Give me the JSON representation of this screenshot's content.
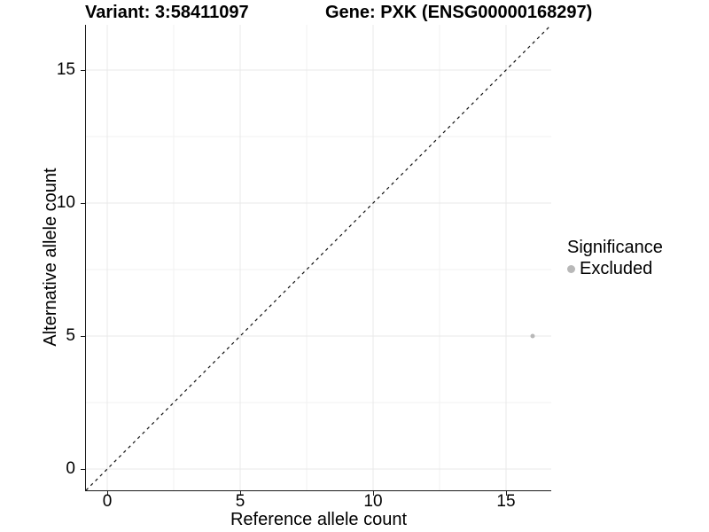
{
  "chart_data": {
    "type": "scatter",
    "titles": {
      "left": "Variant: 3:58411097",
      "right": "Gene: PXK (ENSG00000168297)"
    },
    "xlabel": "Reference allele count",
    "ylabel": "Alternative allele count",
    "xlim": [
      -0.8,
      16.7
    ],
    "ylim": [
      -0.8,
      16.7
    ],
    "x_ticks": [
      0,
      5,
      10,
      15
    ],
    "y_ticks": [
      0,
      5,
      10,
      15
    ],
    "x_minor_gridlines": [
      2.5,
      7.5,
      12.5
    ],
    "y_minor_gridlines": [
      2.5,
      7.5,
      12.5
    ],
    "grid": "major+minor",
    "reference_line": {
      "type": "identity y=x",
      "style": "dashed",
      "color": "#111111"
    },
    "series": [
      {
        "name": "Excluded",
        "color": "#b8b8b8",
        "points": [
          {
            "x": 16,
            "y": 5
          }
        ]
      }
    ],
    "legend": {
      "title": "Significance",
      "position": "right",
      "items": [
        {
          "label": "Excluded",
          "color": "#b8b8b8"
        }
      ]
    }
  },
  "colors": {
    "background": "#ffffff",
    "grid_major": "#e8e8e8",
    "grid_minor": "#f1f1f1",
    "axis_line": "#1a1a1a",
    "text": "#000000"
  }
}
